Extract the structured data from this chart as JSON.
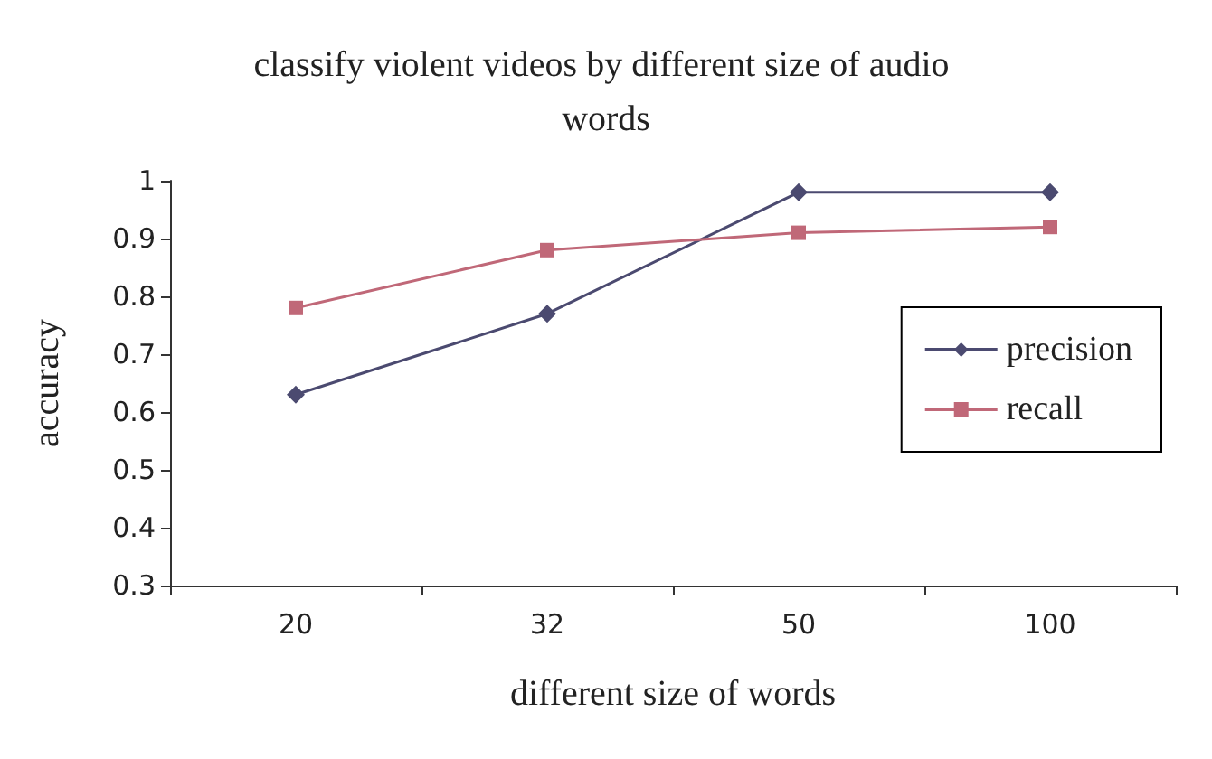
{
  "chart_data": {
    "type": "line",
    "title": "classify violent videos by different size of audio words",
    "xlabel": "different size of words",
    "ylabel": "accuracy",
    "categories": [
      "20",
      "32",
      "50",
      "100"
    ],
    "series": [
      {
        "name": "precision",
        "color": "#4b4a70",
        "marker": "diamond",
        "values": [
          0.63,
          0.77,
          0.98,
          0.98
        ]
      },
      {
        "name": "recall",
        "color": "#c06878",
        "marker": "square",
        "values": [
          0.78,
          0.88,
          0.91,
          0.92
        ]
      }
    ],
    "ylim": [
      0.3,
      1
    ],
    "yticks": [
      0.3,
      0.4,
      0.5,
      0.6,
      0.7,
      0.8,
      0.9,
      1
    ],
    "grid": false,
    "legend": "right",
    "line_style": "solid"
  }
}
